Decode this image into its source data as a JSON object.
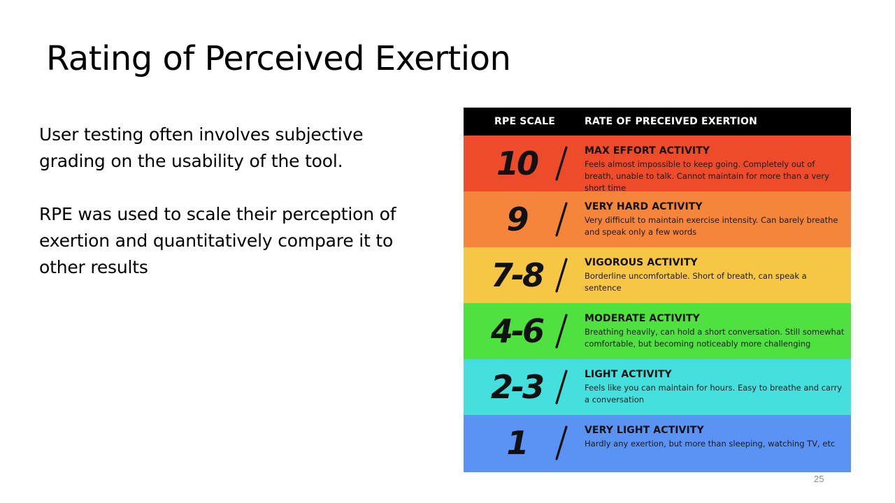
{
  "slide": {
    "title": "Rating of Perceived Exertion",
    "paragraphs": [
      "User testing often involves subjective grading on the usability of the tool.",
      "RPE was used to scale their perception of exertion and quantitatively compare it to other results"
    ],
    "page_number": "25"
  },
  "rpe_table": {
    "header": {
      "scale": "RPE SCALE",
      "description": "RATE OF PRECEIVED EXERTION"
    },
    "rows": [
      {
        "level": "10",
        "title": "MAX EFFORT ACTIVITY",
        "description": "Feels almost impossible to keep going. Completely out of breath, unable to talk. Cannot maintain for more than a very short time",
        "color": "#ee4b2b"
      },
      {
        "level": "9",
        "title": "VERY HARD ACTIVITY",
        "description": "Very difficult to maintain exercise intensity. Can barely breathe and speak only a few words",
        "color": "#f5853a"
      },
      {
        "level": "7-8",
        "title": "VIGOROUS ACTIVITY",
        "description": "Borderline uncomfortable. Short of breath, can speak a sentence",
        "color": "#f7c644"
      },
      {
        "level": "4-6",
        "title": "MODERATE ACTIVITY",
        "description": "Breathing heavily, can hold a short conversation. Still somewhat comfortable, but becoming noticeably more challenging",
        "color": "#4fe13f"
      },
      {
        "level": "2-3",
        "title": "LIGHT ACTIVITY",
        "description": "Feels like you can maintain for hours. Easy to breathe and carry a conversation",
        "color": "#45e0de"
      },
      {
        "level": "1",
        "title": "VERY LIGHT ACTIVITY",
        "description": "Hardly any exertion, but more than sleeping, watching TV, etc",
        "color": "#5b93f5"
      }
    ]
  }
}
